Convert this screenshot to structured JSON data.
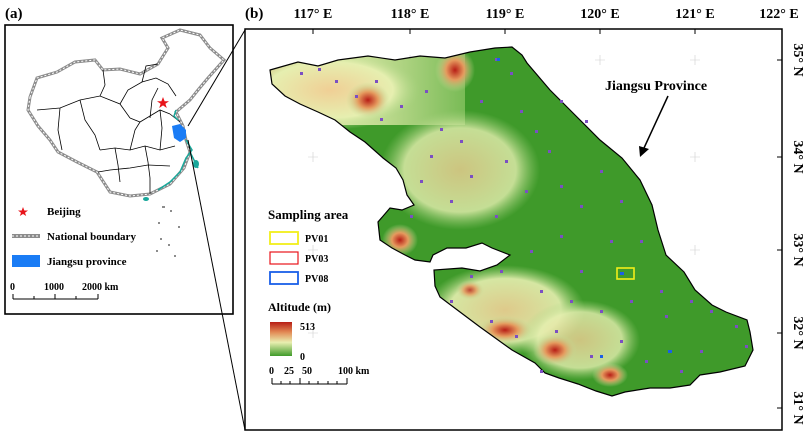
{
  "panel_a": {
    "label": "(a)",
    "legend": {
      "beijing": "Beijing",
      "national_boundary": "National boundary",
      "jiangsu": "Jiangsu province",
      "colors": {
        "beijing": "#e8141b",
        "boundary": "#8c8c8c",
        "jiangsu": "#1a7cf5",
        "island": "#19a89b"
      }
    },
    "scale": {
      "ticks": [
        "0",
        "1000",
        "2000 km"
      ]
    }
  },
  "panel_b": {
    "label": "(b)",
    "top_ticks": [
      "117° E",
      "118° E",
      "119° E",
      "120° E",
      "121° E",
      "122° E"
    ],
    "right_ticks": [
      "35° N",
      "34° N",
      "33° N",
      "32° N",
      "31° N"
    ],
    "province_label": "Jiangsu Province",
    "sampling": {
      "title": "Sampling area",
      "items": [
        {
          "label": "PV01",
          "color": "#f2ee1a"
        },
        {
          "label": "PV03",
          "color": "#e8141b"
        },
        {
          "label": "PV08",
          "color": "#1a5fe8"
        }
      ]
    },
    "altitude": {
      "title": "Altitude (m)",
      "max": "513",
      "min": "0"
    },
    "scale": {
      "ticks": [
        "0",
        "25",
        "50",
        "100 km"
      ]
    },
    "colors": {
      "lowland": "#3f9a2a",
      "highland": "#c9321e",
      "points": "#7b4fc2"
    }
  }
}
